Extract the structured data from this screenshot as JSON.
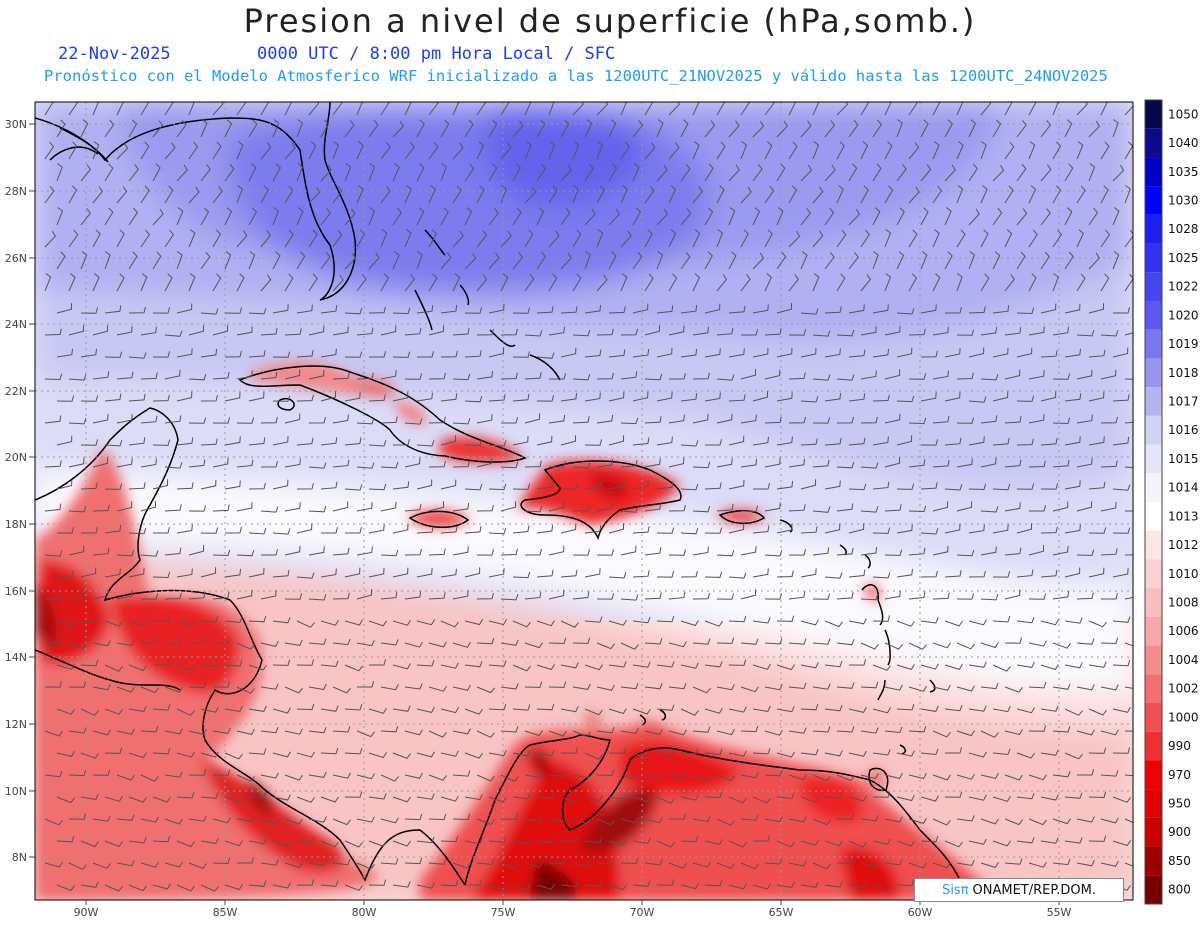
{
  "header": {
    "title": "Presion a nivel de superficie (hPa,somb.)",
    "date": "22-Nov-2025",
    "time_line": "0000 UTC / 8:00 pm Hora Local / SFC",
    "forecast_line": "Pronóstico con el Modelo Atmosferico WRF inicializado a las 1200UTC_21NOV2025 y válido hasta las  1200UTC_24NOV2025"
  },
  "map": {
    "lat_labels": [
      "30N",
      "28N",
      "26N",
      "24N",
      "22N",
      "20N",
      "18N",
      "16N",
      "14N",
      "12N",
      "10N",
      "8N"
    ],
    "lon_labels": [
      "90W",
      "85W",
      "80W",
      "75W",
      "70W",
      "65W",
      "60W",
      "55W"
    ],
    "grid": true,
    "wind_barbs": true
  },
  "colorbar": {
    "levels": [
      "1050",
      "1040",
      "1035",
      "1030",
      "1028",
      "1025",
      "1022",
      "1020",
      "1019",
      "1018",
      "1017",
      "1016",
      "1015",
      "1014",
      "1013",
      "1012",
      "1010",
      "1008",
      "1006",
      "1004",
      "1002",
      "1000",
      "990",
      "970",
      "950",
      "900",
      "850",
      "800"
    ],
    "colors": [
      "#06064a",
      "#0a0a8c",
      "#0000c8",
      "#0000ff",
      "#1e1ef0",
      "#3232f0",
      "#4646f0",
      "#5a5af0",
      "#7878f0",
      "#9696f2",
      "#b4b4f4",
      "#d2d2f6",
      "#e6e6fa",
      "#f4f4fc",
      "#ffffff",
      "#fce6e6",
      "#fad2d2",
      "#f8bebe",
      "#f6a8a8",
      "#f48c8c",
      "#f27070",
      "#f05050",
      "#ee3030",
      "#f00000",
      "#e00000",
      "#c80000",
      "#a00000",
      "#780000"
    ]
  },
  "footer": {
    "brand": "Sisπ",
    "credit": " ONAMET/REP.DOM."
  }
}
